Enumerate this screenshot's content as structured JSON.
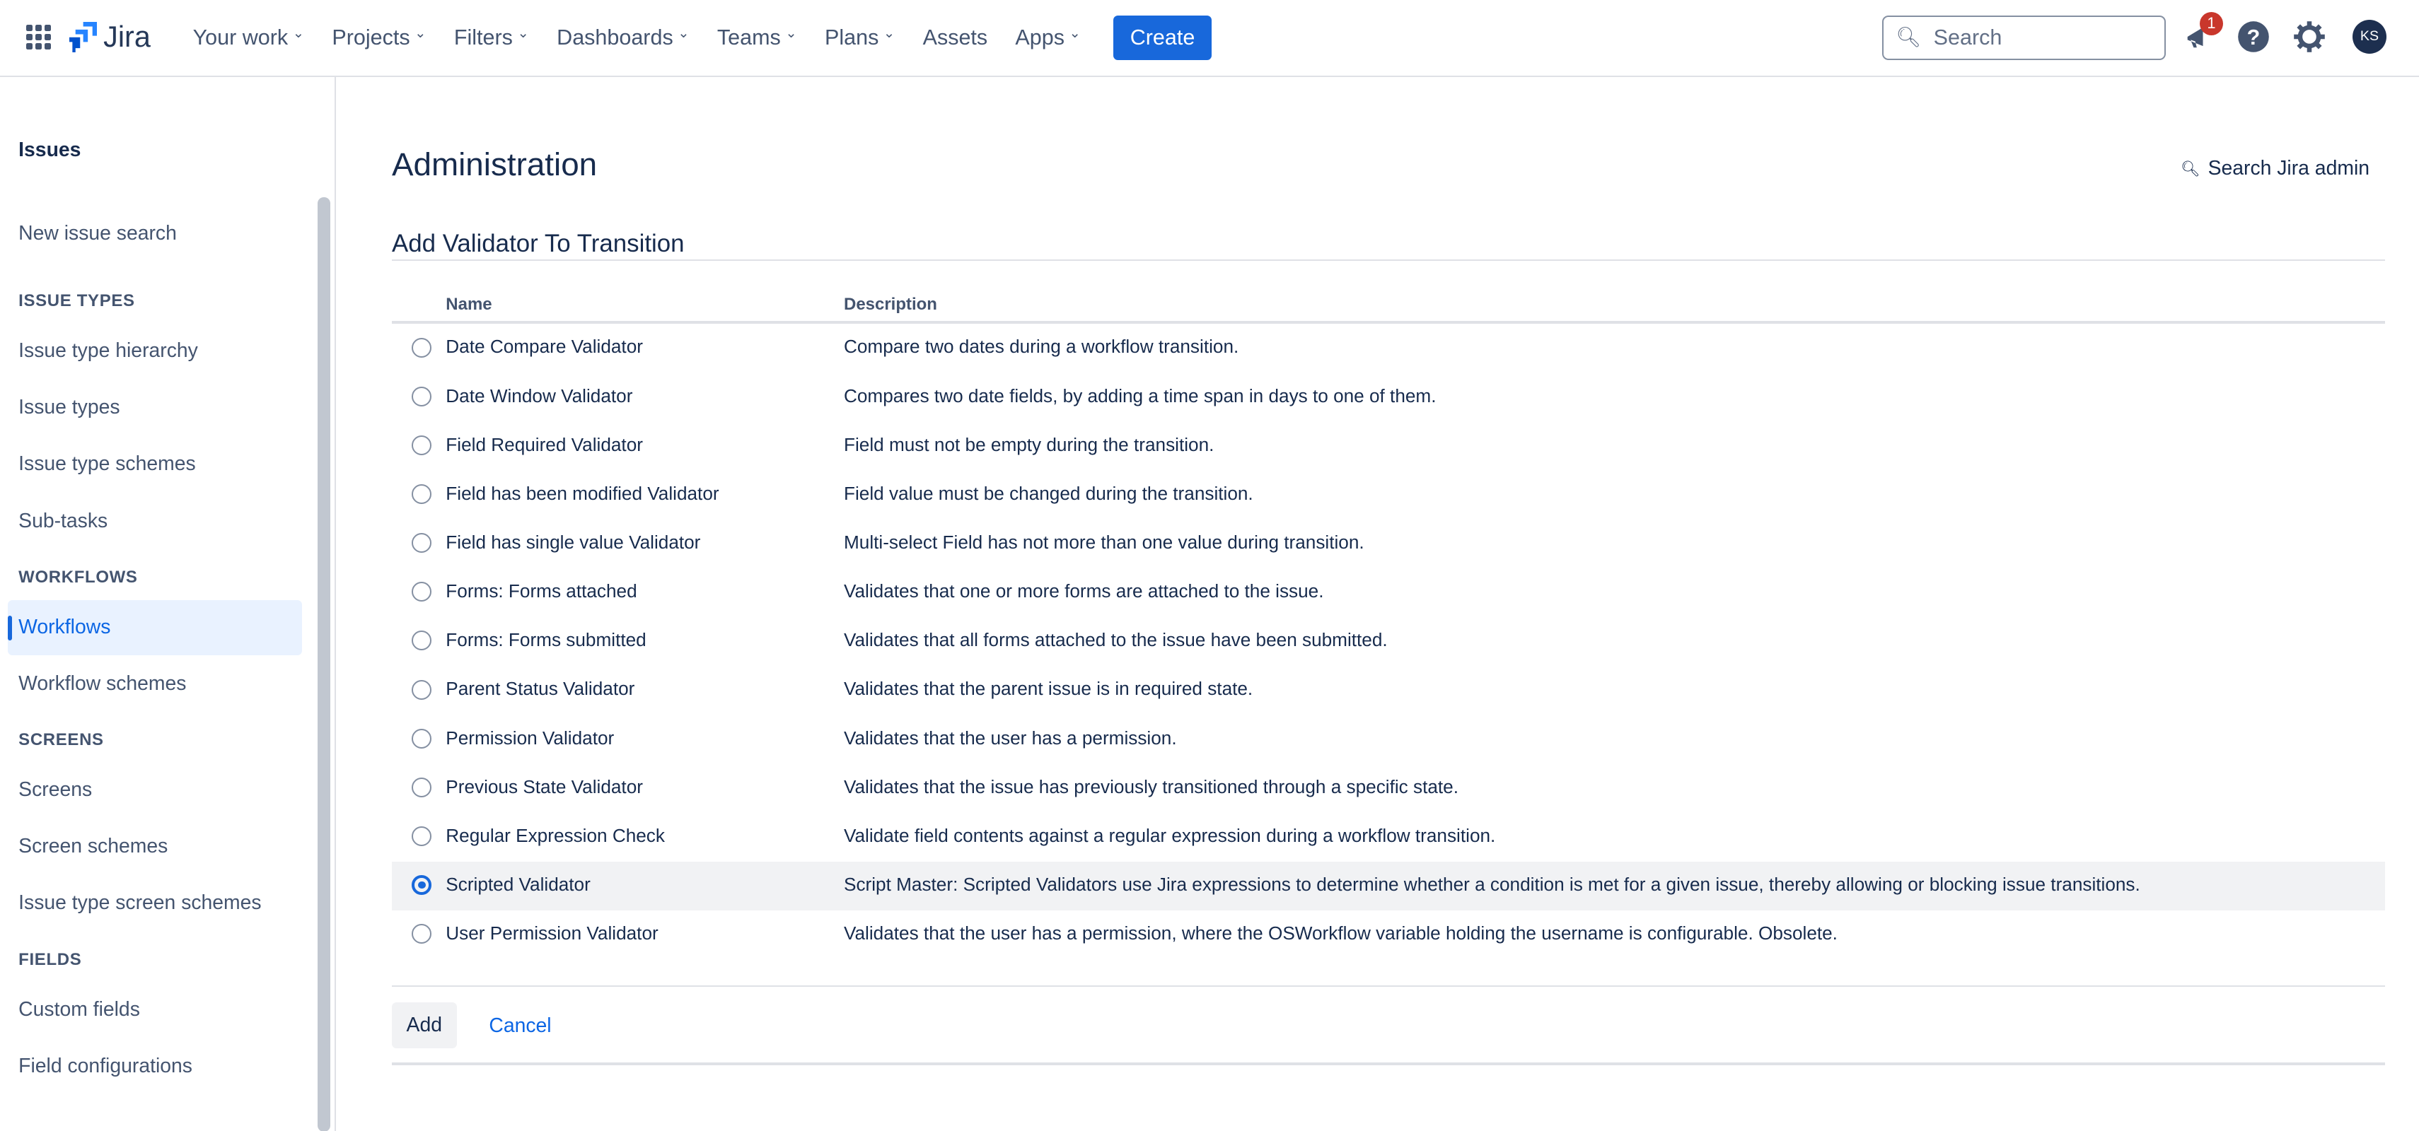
{
  "nav": {
    "product": "Jira",
    "items": [
      {
        "label": "Your work",
        "dropdown": true
      },
      {
        "label": "Projects",
        "dropdown": true
      },
      {
        "label": "Filters",
        "dropdown": true
      },
      {
        "label": "Dashboards",
        "dropdown": true
      },
      {
        "label": "Teams",
        "dropdown": true
      },
      {
        "label": "Plans",
        "dropdown": true
      },
      {
        "label": "Assets",
        "dropdown": false
      },
      {
        "label": "Apps",
        "dropdown": true
      }
    ],
    "create": "Create",
    "search_placeholder": "Search",
    "notification_count": "1",
    "avatar": "KS"
  },
  "sidebar": {
    "heading": "Issues",
    "new_issue_search": "New issue search",
    "sections": [
      {
        "title": "ISSUE TYPES",
        "items": [
          "Issue type hierarchy",
          "Issue types",
          "Issue type schemes",
          "Sub-tasks"
        ]
      },
      {
        "title": "WORKFLOWS",
        "items": [
          "Workflows",
          "Workflow schemes"
        ]
      },
      {
        "title": "SCREENS",
        "items": [
          "Screens",
          "Screen schemes",
          "Issue type screen schemes"
        ]
      },
      {
        "title": "FIELDS",
        "items": [
          "Custom fields",
          "Field configurations"
        ]
      }
    ],
    "active": "Workflows"
  },
  "main": {
    "title": "Administration",
    "search_admin": "Search Jira admin",
    "subtitle": "Add Validator To Transition",
    "columns": {
      "name": "Name",
      "description": "Description"
    },
    "rows": [
      {
        "name": "Date Compare Validator",
        "desc": "Compare two dates during a workflow transition."
      },
      {
        "name": "Date Window Validator",
        "desc": "Compares two date fields, by adding a time span in days to one of them."
      },
      {
        "name": "Field Required Validator",
        "desc": "Field must not be empty during the transition."
      },
      {
        "name": "Field has been modified Validator",
        "desc": "Field value must be changed during the transition."
      },
      {
        "name": "Field has single value Validator",
        "desc": "Multi-select Field has not more than one value during transition."
      },
      {
        "name": "Forms: Forms attached",
        "desc": "Validates that one or more forms are attached to the issue."
      },
      {
        "name": "Forms: Forms submitted",
        "desc": "Validates that all forms attached to the issue have been submitted."
      },
      {
        "name": "Parent Status Validator",
        "desc": "Validates that the parent issue is in required state."
      },
      {
        "name": "Permission Validator",
        "desc": "Validates that the user has a permission."
      },
      {
        "name": "Previous State Validator",
        "desc": "Validates that the issue has previously transitioned through a specific state."
      },
      {
        "name": "Regular Expression Check",
        "desc": "Validate field contents against a regular expression during a workflow transition."
      },
      {
        "name": "Scripted Validator",
        "desc": "Script Master: Scripted Validators use Jira expressions to determine whether a condition is met for a given issue, thereby allowing or blocking issue transitions.",
        "selected": true
      },
      {
        "name": "User Permission Validator",
        "desc": "Validates that the user has a permission, where the OSWorkflow variable holding the username is configurable. Obsolete."
      }
    ],
    "add": "Add",
    "cancel": "Cancel"
  },
  "colors": {
    "accent": "#1868db",
    "badge": "#c9372c",
    "selected_row": "#f1f2f4"
  }
}
